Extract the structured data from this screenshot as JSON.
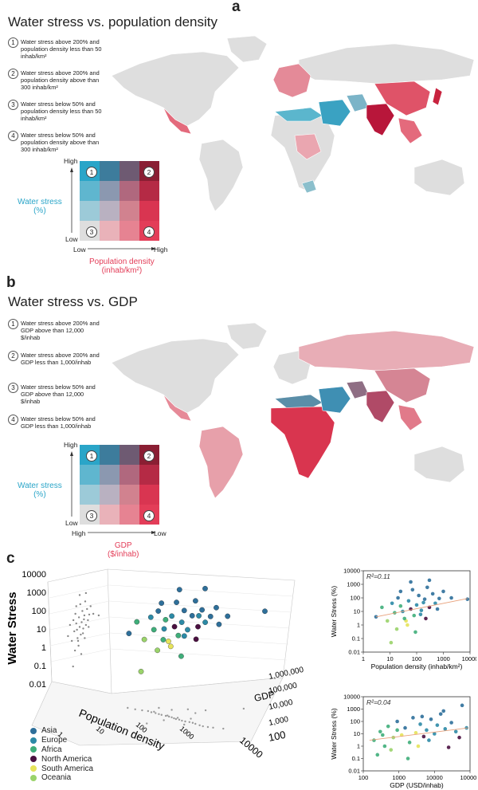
{
  "panel_a": {
    "letter": "a",
    "title": "Water stress vs. population density",
    "notes": [
      {
        "n": "1",
        "text": "Water stress above 200% and population density less than 50 inhab/km²"
      },
      {
        "n": "2",
        "text": "Water stress above 200% and population density above than 300 inhab/km²"
      },
      {
        "n": "3",
        "text": "Water stress below 50% and population density less than 50 inhab/km²"
      },
      {
        "n": "4",
        "text": "Water stress below 50% and population density above than 300 inhab/km²"
      }
    ],
    "legend": {
      "y_high": "High",
      "y_low": "Low",
      "x_low": "Low",
      "x_high": "High",
      "y_label_1": "Water stress",
      "y_label_2": "(%)",
      "x_label_1": "Population density",
      "x_label_2": "(inhab/km²)",
      "badges": [
        "1",
        "2",
        "3",
        "4"
      ]
    }
  },
  "panel_b": {
    "letter": "b",
    "title": "Water stress vs. GDP",
    "notes": [
      {
        "n": "1",
        "text": "Water stress above 200% and GDP above than 12,000 $/inhab"
      },
      {
        "n": "2",
        "text": "Water stress above 200% and GDP less than 1,000/inhab"
      },
      {
        "n": "3",
        "text": "Water stress below 50% and GDP above than 12,000 $/inhab"
      },
      {
        "n": "4",
        "text": "Water stress below 50% and GDP less than 1,000/inhab"
      }
    ],
    "legend": {
      "y_high": "High",
      "y_low": "Low",
      "x_low": "High",
      "x_high": "Low",
      "y_label_1": "Water stress",
      "y_label_2": "(%)",
      "x_label_1": "GDP",
      "x_label_2": "($/inhab)",
      "badges": [
        "1",
        "2",
        "3",
        "4"
      ]
    }
  },
  "panel_c": {
    "letter": "c",
    "plot3d": {
      "z_label": "Water Stress",
      "z_ticks": [
        "10000",
        "1000",
        "100",
        "10",
        "1",
        "0.1",
        "0.01"
      ],
      "x_label": "Population density",
      "x_ticks": [
        "1",
        "10",
        "100",
        "1000",
        "10000"
      ],
      "gdp_label": "GDP",
      "gdp_ticks": [
        "1,000,000",
        "100,000",
        "10,000",
        "1,000",
        "100"
      ]
    },
    "regions": [
      {
        "name": "Asia",
        "color": "#2e6f9a"
      },
      {
        "name": "Europe",
        "color": "#2c8aa6"
      },
      {
        "name": "Africa",
        "color": "#3fae7a"
      },
      {
        "name": "North America",
        "color": "#4a1040"
      },
      {
        "name": "South America",
        "color": "#e6e35a"
      },
      {
        "name": "Oceania",
        "color": "#9ad36a"
      }
    ]
  },
  "chart_data": [
    {
      "type": "scatter",
      "title": "",
      "annotation": "R²=0.11",
      "xlabel": "Population density (inhab/km²)",
      "ylabel": "Water Stress (%)",
      "xscale": "log",
      "yscale": "log",
      "xlim": [
        1,
        10000
      ],
      "ylim": [
        0.01,
        10000
      ],
      "xticks": [
        "1",
        "10",
        "100",
        "1000",
        "10000"
      ],
      "yticks": [
        "0.01",
        "0.1",
        "1",
        "10",
        "100",
        "1000",
        "10000"
      ],
      "trend": [
        [
          3,
          4
        ],
        [
          8000,
          90
        ]
      ],
      "points": [
        [
          3,
          4,
          "Asia"
        ],
        [
          5,
          20,
          "Africa"
        ],
        [
          8,
          2,
          "Oceania"
        ],
        [
          12,
          40,
          "Europe"
        ],
        [
          15,
          8,
          "Africa"
        ],
        [
          20,
          100,
          "Asia"
        ],
        [
          25,
          300,
          "Asia"
        ],
        [
          30,
          10,
          "Europe"
        ],
        [
          40,
          2,
          "South America"
        ],
        [
          50,
          60,
          "Europe"
        ],
        [
          60,
          15,
          "North America"
        ],
        [
          70,
          400,
          "Asia"
        ],
        [
          80,
          5,
          "Africa"
        ],
        [
          100,
          30,
          "Europe"
        ],
        [
          120,
          150,
          "Asia"
        ],
        [
          150,
          12,
          "Europe"
        ],
        [
          200,
          80,
          "Asia"
        ],
        [
          250,
          600,
          "Asia"
        ],
        [
          300,
          20,
          "North America"
        ],
        [
          400,
          200,
          "Asia"
        ],
        [
          500,
          40,
          "Europe"
        ],
        [
          700,
          90,
          "Asia"
        ],
        [
          1000,
          300,
          "Asia"
        ],
        [
          2000,
          100,
          "Asia"
        ],
        [
          8000,
          80,
          "Asia"
        ],
        [
          18,
          0.5,
          "Oceania"
        ],
        [
          45,
          1,
          "South America"
        ],
        [
          90,
          0.3,
          "Africa"
        ],
        [
          35,
          3,
          "Africa"
        ],
        [
          140,
          6,
          "Europe"
        ],
        [
          60,
          1500,
          "Asia"
        ],
        [
          220,
          3,
          "North America"
        ],
        [
          11,
          0.05,
          "Oceania"
        ],
        [
          300,
          2000,
          "Asia"
        ],
        [
          25,
          25,
          "Africa"
        ],
        [
          180,
          45,
          "Europe"
        ],
        [
          600,
          15,
          "Asia"
        ]
      ]
    },
    {
      "type": "scatter",
      "title": "",
      "annotation": "R²=0.04",
      "xlabel": "GDP (USD/inhab)",
      "ylabel": "Water Stress (%)",
      "xscale": "log",
      "yscale": "log",
      "xlim": [
        100,
        100000
      ],
      "ylim": [
        0.01,
        10000
      ],
      "xticks": [
        "100",
        "1000",
        "10000",
        "100000"
      ],
      "yticks": [
        "0.01",
        "0.1",
        "1",
        "10",
        "100",
        "1000",
        "10000"
      ],
      "trend": [
        [
          150,
          3
        ],
        [
          90000,
          30
        ]
      ],
      "points": [
        [
          200,
          3,
          "Africa"
        ],
        [
          300,
          15,
          "Africa"
        ],
        [
          400,
          1,
          "Africa"
        ],
        [
          500,
          40,
          "Africa"
        ],
        [
          700,
          5,
          "Oceania"
        ],
        [
          900,
          100,
          "Asia"
        ],
        [
          1200,
          8,
          "South America"
        ],
        [
          1500,
          30,
          "Asia"
        ],
        [
          2000,
          2,
          "Africa"
        ],
        [
          2500,
          200,
          "Asia"
        ],
        [
          3000,
          12,
          "South America"
        ],
        [
          4000,
          60,
          "Europe"
        ],
        [
          5000,
          6,
          "North America"
        ],
        [
          6000,
          20,
          "Europe"
        ],
        [
          8000,
          150,
          "Asia"
        ],
        [
          10000,
          10,
          "Europe"
        ],
        [
          12000,
          50,
          "Europe"
        ],
        [
          15000,
          400,
          "Asia"
        ],
        [
          20000,
          25,
          "Europe"
        ],
        [
          30000,
          80,
          "Asia"
        ],
        [
          40000,
          15,
          "Europe"
        ],
        [
          50000,
          5,
          "North America"
        ],
        [
          60000,
          2000,
          "Asia"
        ],
        [
          80000,
          30,
          "Europe"
        ],
        [
          250,
          0.2,
          "Africa"
        ],
        [
          600,
          0.5,
          "Oceania"
        ],
        [
          1800,
          0.1,
          "Africa"
        ],
        [
          3500,
          1,
          "South America"
        ],
        [
          7000,
          3,
          "Europe"
        ],
        [
          25000,
          0.8,
          "North America"
        ],
        [
          350,
          8,
          "Africa"
        ],
        [
          4500,
          250,
          "Asia"
        ],
        [
          18000,
          700,
          "Asia"
        ],
        [
          900,
          20,
          "Africa"
        ]
      ]
    }
  ]
}
